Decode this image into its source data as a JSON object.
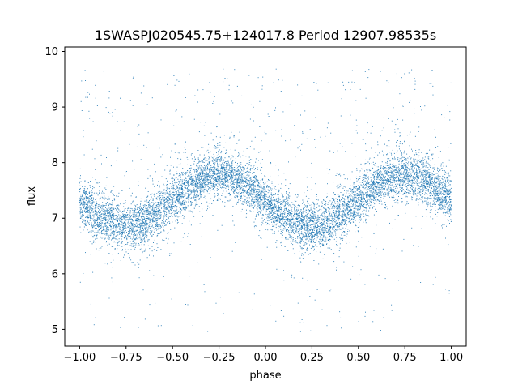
{
  "chart_data": {
    "type": "scatter",
    "title": "1SWASPJ020545.75+124017.8 Period 12907.98535s",
    "xlabel": "phase",
    "ylabel": "flux",
    "xlim": [
      -1.08,
      1.08
    ],
    "ylim": [
      4.7,
      10.08
    ],
    "xticks": [
      -1.0,
      -0.75,
      -0.5,
      -0.25,
      0.0,
      0.25,
      0.5,
      0.75,
      1.0
    ],
    "xtick_labels": [
      "−1.00",
      "−0.75",
      "−0.50",
      "−0.25",
      "0.00",
      "0.25",
      "0.50",
      "0.75",
      "1.00"
    ],
    "yticks": [
      5,
      6,
      7,
      8,
      9,
      10
    ],
    "ytick_labels": [
      "5",
      "6",
      "7",
      "8",
      "9",
      "10"
    ],
    "grid": false,
    "marker_color": "#1f77b4",
    "description_of_data": "Phase-folded light curve; flux oscillates sinusoidally with two cycles over phase -1 to 1, minimum ~6.9 near phase -0.75 and 0.25, maximum ~7.8 near phase -0.25 and 0.75, scatter ~0.2 with sparse outliers between 5 and 9.7.",
    "series": [
      {
        "model": "sinusoid",
        "x_range": [
          -1.0,
          1.0
        ],
        "mean": 7.32,
        "amplitude": 0.46,
        "period": 1.0,
        "phase_of_max": -0.25,
        "scatter": 0.2,
        "n_points": 9000,
        "n_outliers": 500,
        "outlier_range": [
          4.95,
          9.7
        ]
      }
    ]
  }
}
